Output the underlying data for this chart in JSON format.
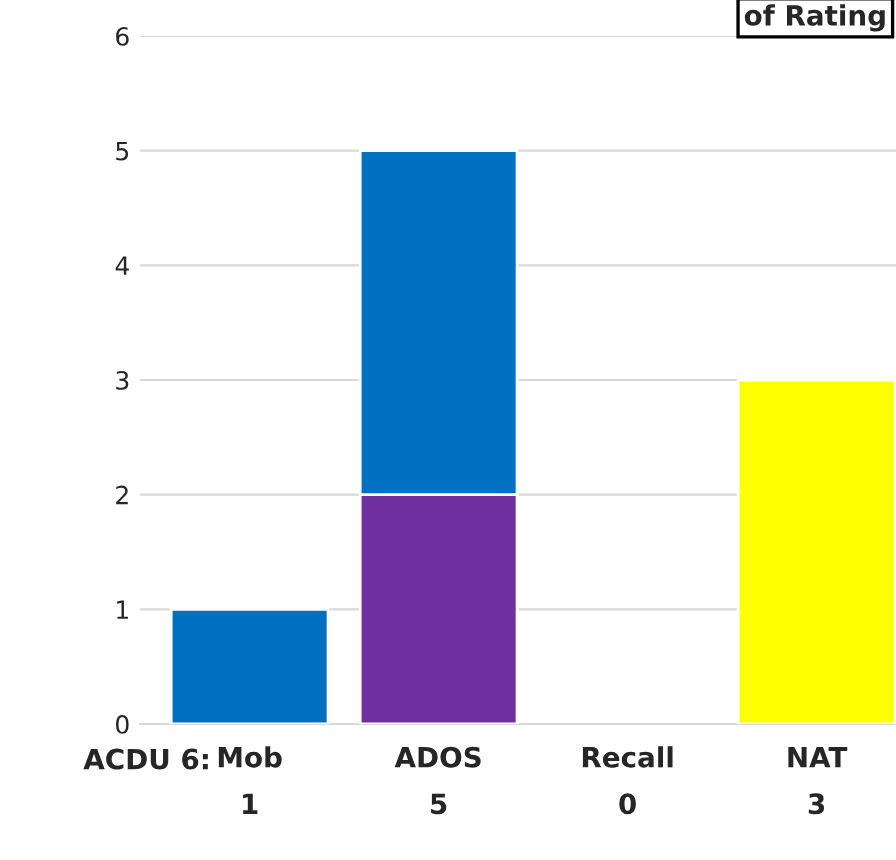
{
  "chart_data": {
    "type": "bar",
    "title": "of Rating",
    "categories": [
      "Mob",
      "ADOS",
      "Recall",
      "NAT"
    ],
    "stacked": true,
    "series": [
      {
        "color": "#7030a0",
        "values": [
          null,
          2,
          null,
          null
        ]
      },
      {
        "color": "#0070c0",
        "values": [
          1,
          3,
          null,
          null
        ]
      },
      {
        "color": "#ffff00",
        "values": [
          null,
          null,
          null,
          3
        ]
      }
    ],
    "totals": [
      "1",
      "5",
      "0",
      "3"
    ],
    "annotations": [
      "ACDU 6:"
    ],
    "ylim": [
      0,
      6
    ],
    "yticks": [
      0,
      1,
      2,
      3,
      4,
      5,
      6
    ],
    "grid": "y",
    "legend": false
  }
}
